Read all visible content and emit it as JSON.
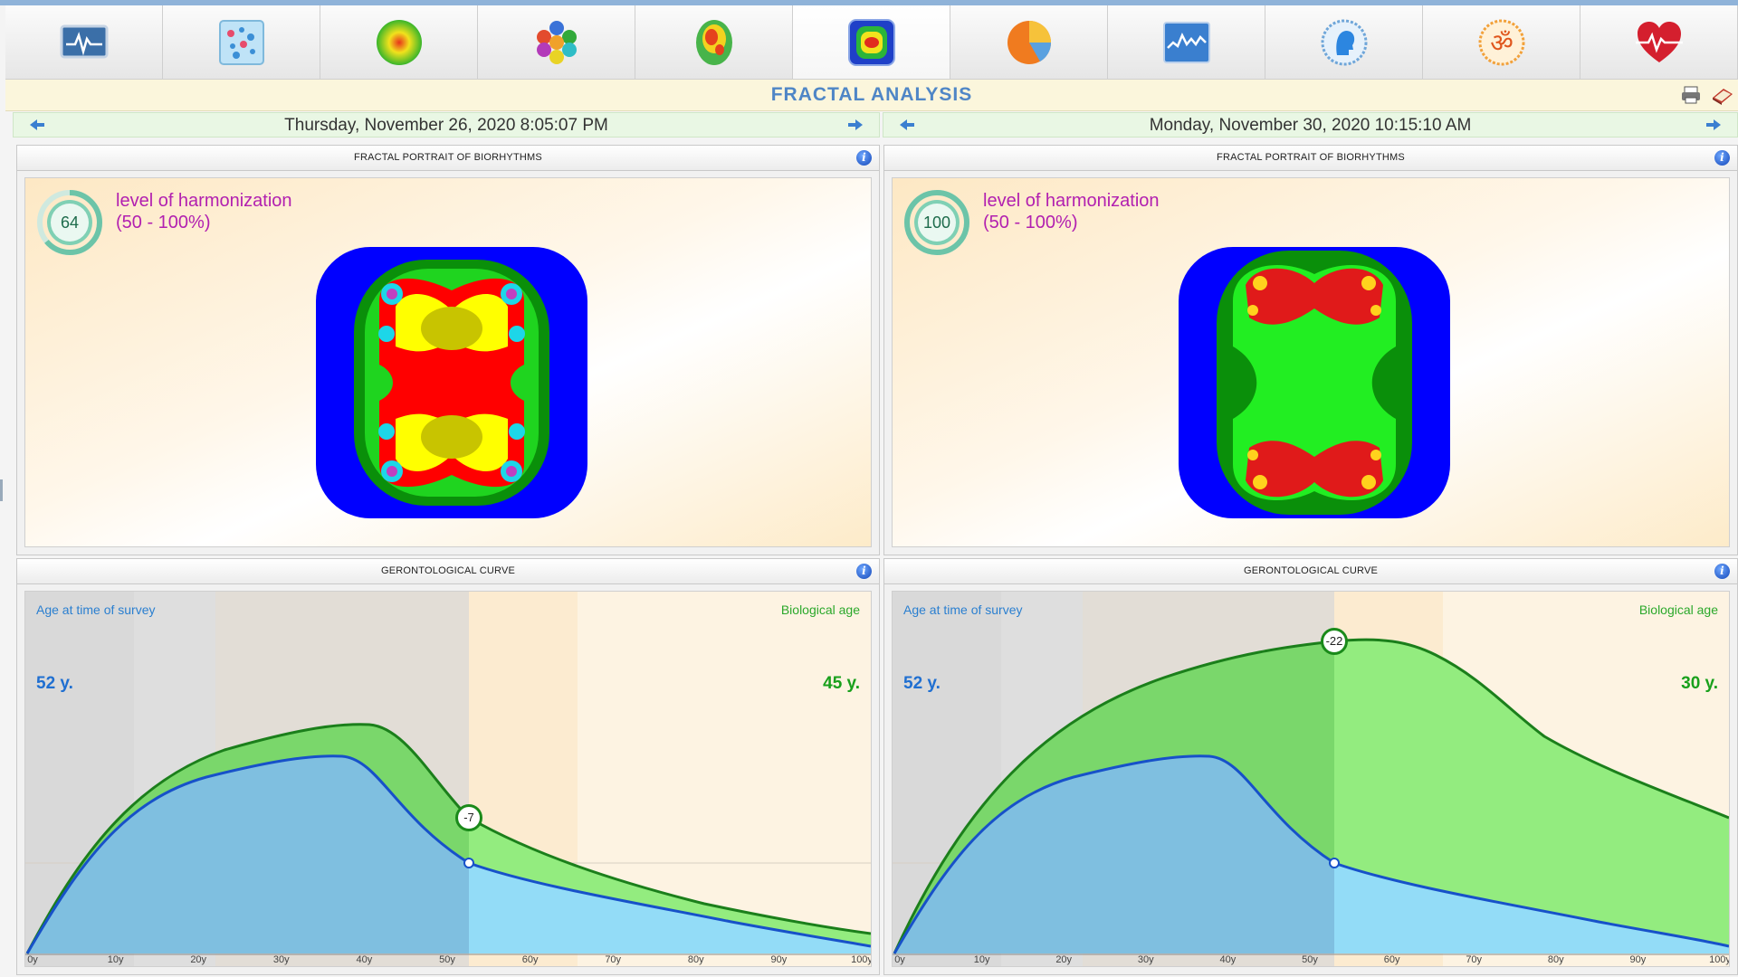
{
  "window": {
    "title": "FRACTAL ANALYSIS"
  },
  "tabs": [
    {
      "icon": "ecg-monitor-icon",
      "active": false
    },
    {
      "icon": "dots-grid-icon",
      "active": false
    },
    {
      "icon": "aura-sphere-icon",
      "active": false
    },
    {
      "icon": "hexagon-chakras-icon",
      "active": false
    },
    {
      "icon": "brain-map-icon",
      "active": false
    },
    {
      "icon": "fractal-portrait-icon",
      "active": true
    },
    {
      "icon": "pie-chart-icon",
      "active": false
    },
    {
      "icon": "wave-chart-icon",
      "active": false
    },
    {
      "icon": "head-profile-icon",
      "active": false
    },
    {
      "icon": "om-symbol-icon",
      "active": false
    },
    {
      "icon": "heart-pulse-icon",
      "active": false
    }
  ],
  "sessions": [
    {
      "date": "Thursday, November 26, 2020 8:05:07 PM",
      "portrait": {
        "header": "FRACTAL PORTRAIT OF BIORHYTHMS",
        "harmonization_value": "64",
        "harmonization_percent": 64,
        "harmonization_label": "level of harmonization",
        "harmonization_range": "(50 - 100%)"
      },
      "curve": {
        "header": "GERONTOLOGICAL CURVE",
        "age_label": "Age at time of survey",
        "bio_label": "Biological age",
        "age_value": "52 y.",
        "bio_value": "45 y.",
        "marker": "-7"
      }
    },
    {
      "date": "Monday, November 30, 2020 10:15:10 AM",
      "portrait": {
        "header": "FRACTAL PORTRAIT OF BIORHYTHMS",
        "harmonization_value": "100",
        "harmonization_percent": 100,
        "harmonization_label": "level of harmonization",
        "harmonization_range": "(50 - 100%)"
      },
      "curve": {
        "header": "GERONTOLOGICAL CURVE",
        "age_label": "Age at time of survey",
        "bio_label": "Biological age",
        "age_value": "52 y.",
        "bio_value": "30 y.",
        "marker": "-22"
      }
    }
  ],
  "x_ticks": [
    "0y",
    "10y",
    "20y",
    "30y",
    "40y",
    "50y",
    "60y",
    "70y",
    "80y",
    "90y",
    "100y"
  ],
  "colors": {
    "title": "#4f86c6",
    "harmonization_text": "#b220b0",
    "age_text": "#1f6fd1",
    "bio_text": "#19a01c",
    "ring": "#6cc4a8"
  }
}
